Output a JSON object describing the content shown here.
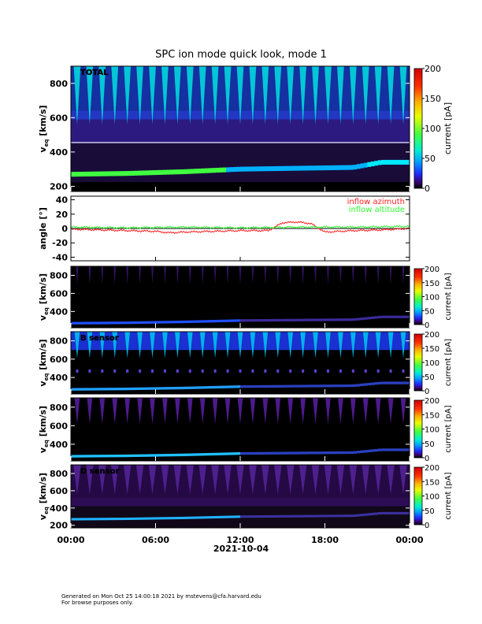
{
  "title": "SPC ion mode quick look, mode 1",
  "footer": {
    "line1": "Generated on Mon Oct 25 14:00:18 2021 by mstevens@cfa.harvard.edu",
    "line2": "For browse purposes only."
  },
  "chart_data": [
    {
      "type": "heatmap",
      "panel_label": "TOTAL",
      "ylabel": "v_eq [km/s]",
      "ylabel_main": "v",
      "ylabel_sub": "eq",
      "ylabel_unit": "[km/s]",
      "ylim": [
        170,
        900
      ],
      "yticks": [
        200,
        400,
        600,
        800
      ],
      "xlim": [
        "00:00",
        "24:00"
      ],
      "colorbar": {
        "label": "current [pA]",
        "range": [
          0,
          200
        ],
        "ticks": [
          0,
          50,
          100,
          150,
          200
        ]
      },
      "beam_speed": {
        "x_hours": [
          0,
          4,
          8,
          12,
          16,
          20,
          22,
          24
        ],
        "v_kms": [
          270,
          275,
          285,
          300,
          305,
          310,
          340,
          340
        ]
      },
      "plume_count": 27
    },
    {
      "type": "line",
      "ylabel": "angle [°]",
      "ylim": [
        -45,
        45
      ],
      "yticks": [
        -40,
        -20,
        0,
        20,
        40
      ],
      "series": [
        {
          "name": "inflow azimuth",
          "color": "#ff2020",
          "x_hours": [
            0,
            2,
            4,
            6,
            7,
            8,
            10,
            12,
            14,
            15,
            16,
            17,
            18,
            20,
            22,
            24
          ],
          "values": [
            -1,
            -2,
            -3,
            -4,
            -6,
            -5,
            -4,
            -3,
            -3,
            8,
            9,
            7,
            -5,
            -3,
            -2,
            0
          ]
        },
        {
          "name": "inflow altitude",
          "color": "#30ff30",
          "x_hours": [
            0,
            4,
            8,
            12,
            16,
            20,
            24
          ],
          "values": [
            2,
            1,
            2,
            1,
            2,
            2,
            3
          ]
        }
      ]
    },
    {
      "type": "heatmap",
      "panel_label": "",
      "ylabel": "v_eq [km/s]",
      "ylabel_main": "v",
      "ylabel_sub": "eq",
      "ylabel_unit": "[km/s]",
      "ylim": [
        220,
        900
      ],
      "yticks": [
        400,
        600,
        800
      ],
      "colorbar": {
        "label": "current [pA]",
        "range": [
          0,
          200
        ],
        "ticks": [
          0,
          50,
          100,
          150,
          200
        ]
      }
    },
    {
      "type": "heatmap",
      "panel_label": "B sensor",
      "ylabel": "v_eq [km/s]",
      "ylabel_main": "v",
      "ylabel_sub": "eq",
      "ylabel_unit": "[km/s]",
      "ylim": [
        220,
        900
      ],
      "yticks": [
        400,
        600,
        800
      ],
      "colorbar": {
        "label": "current [pA]",
        "range": [
          0,
          200
        ],
        "ticks": [
          0,
          50,
          100,
          150,
          200
        ]
      }
    },
    {
      "type": "heatmap",
      "panel_label": "",
      "ylabel": "v_eq [km/s]",
      "ylabel_main": "v",
      "ylabel_sub": "eq",
      "ylabel_unit": "[km/s]",
      "ylim": [
        220,
        900
      ],
      "yticks": [
        400,
        600,
        800
      ],
      "colorbar": {
        "label": "current [pA]",
        "range": [
          0,
          200
        ],
        "ticks": [
          0,
          50,
          100,
          150,
          200
        ]
      }
    },
    {
      "type": "heatmap",
      "panel_label": "D sensor",
      "ylabel": "v_eq [km/s]",
      "ylabel_main": "v",
      "ylabel_sub": "eq",
      "ylabel_unit": "[km/s]",
      "ylim": [
        170,
        900
      ],
      "yticks": [
        200,
        400,
        600,
        800
      ],
      "colorbar": {
        "label": "current [pA]",
        "range": [
          0,
          200
        ],
        "ticks": [
          0,
          50,
          100,
          150,
          200
        ]
      }
    }
  ],
  "xaxis": {
    "ticks": [
      "00:00",
      "06:00",
      "12:00",
      "18:00",
      "00:00"
    ],
    "date": "2021-10-04"
  }
}
